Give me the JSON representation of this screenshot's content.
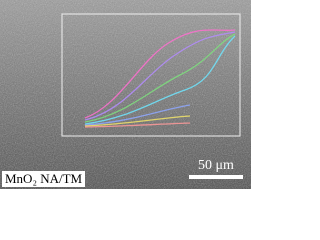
{
  "image": {
    "sample_label": "MnO₂ NA/TM",
    "scale_bar": "50 μm"
  }
}
